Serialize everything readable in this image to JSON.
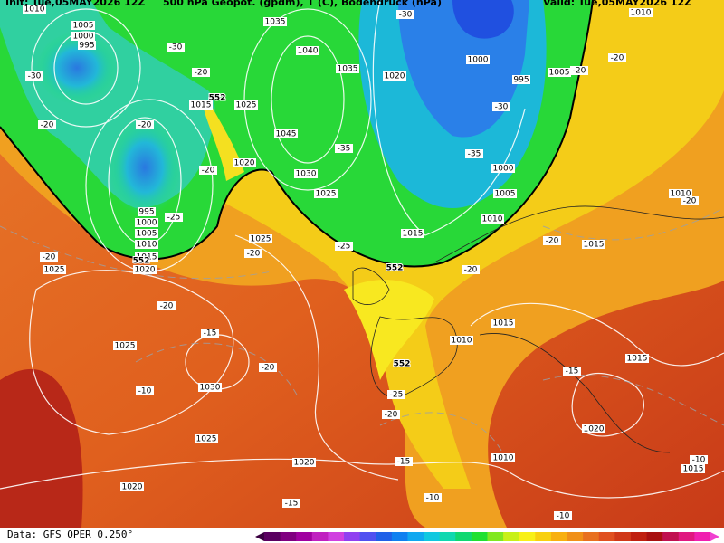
{
  "header": {
    "init": "Init: Tue,05MAY2026 12Z",
    "title": "500 hPa Geopot. (gpdm), T (C), Bodendruck (hPa)",
    "valid": "Valid: Tue,05MAY2026 12Z"
  },
  "map": {
    "pressure_labels": [
      "1010",
      "1005",
      "1000",
      "995",
      "1035",
      "1040",
      "1035",
      "1020",
      "1000",
      "995",
      "1005",
      "1010",
      "1015",
      "1025",
      "1045",
      "1020",
      "1030",
      "1025",
      "1000",
      "1005",
      "1010",
      "1015",
      "995",
      "1000",
      "1005",
      "1010",
      "1015",
      "1020",
      "1025",
      "1025",
      "1025",
      "1030",
      "1025",
      "1020",
      "1020",
      "1010",
      "1015",
      "1015",
      "1015",
      "1020",
      "1010",
      "1010",
      "1015"
    ],
    "temperature_labels": [
      "-30",
      "-30",
      "-20",
      "-20",
      "-20",
      "-20",
      "-25",
      "-30",
      "-30",
      "-35",
      "-35",
      "-25",
      "-20",
      "-20",
      "-20",
      "-15",
      "-20",
      "-10",
      "-25",
      "-20",
      "-15",
      "-10",
      "-15",
      "-10",
      "-20",
      "-20",
      "-20",
      "-20",
      "-20",
      "-15",
      "-10"
    ],
    "geopotential_labels": [
      "552",
      "552",
      "552",
      "552"
    ]
  },
  "footer": {
    "source": "Data: GFS OPER 0.250°"
  }
}
